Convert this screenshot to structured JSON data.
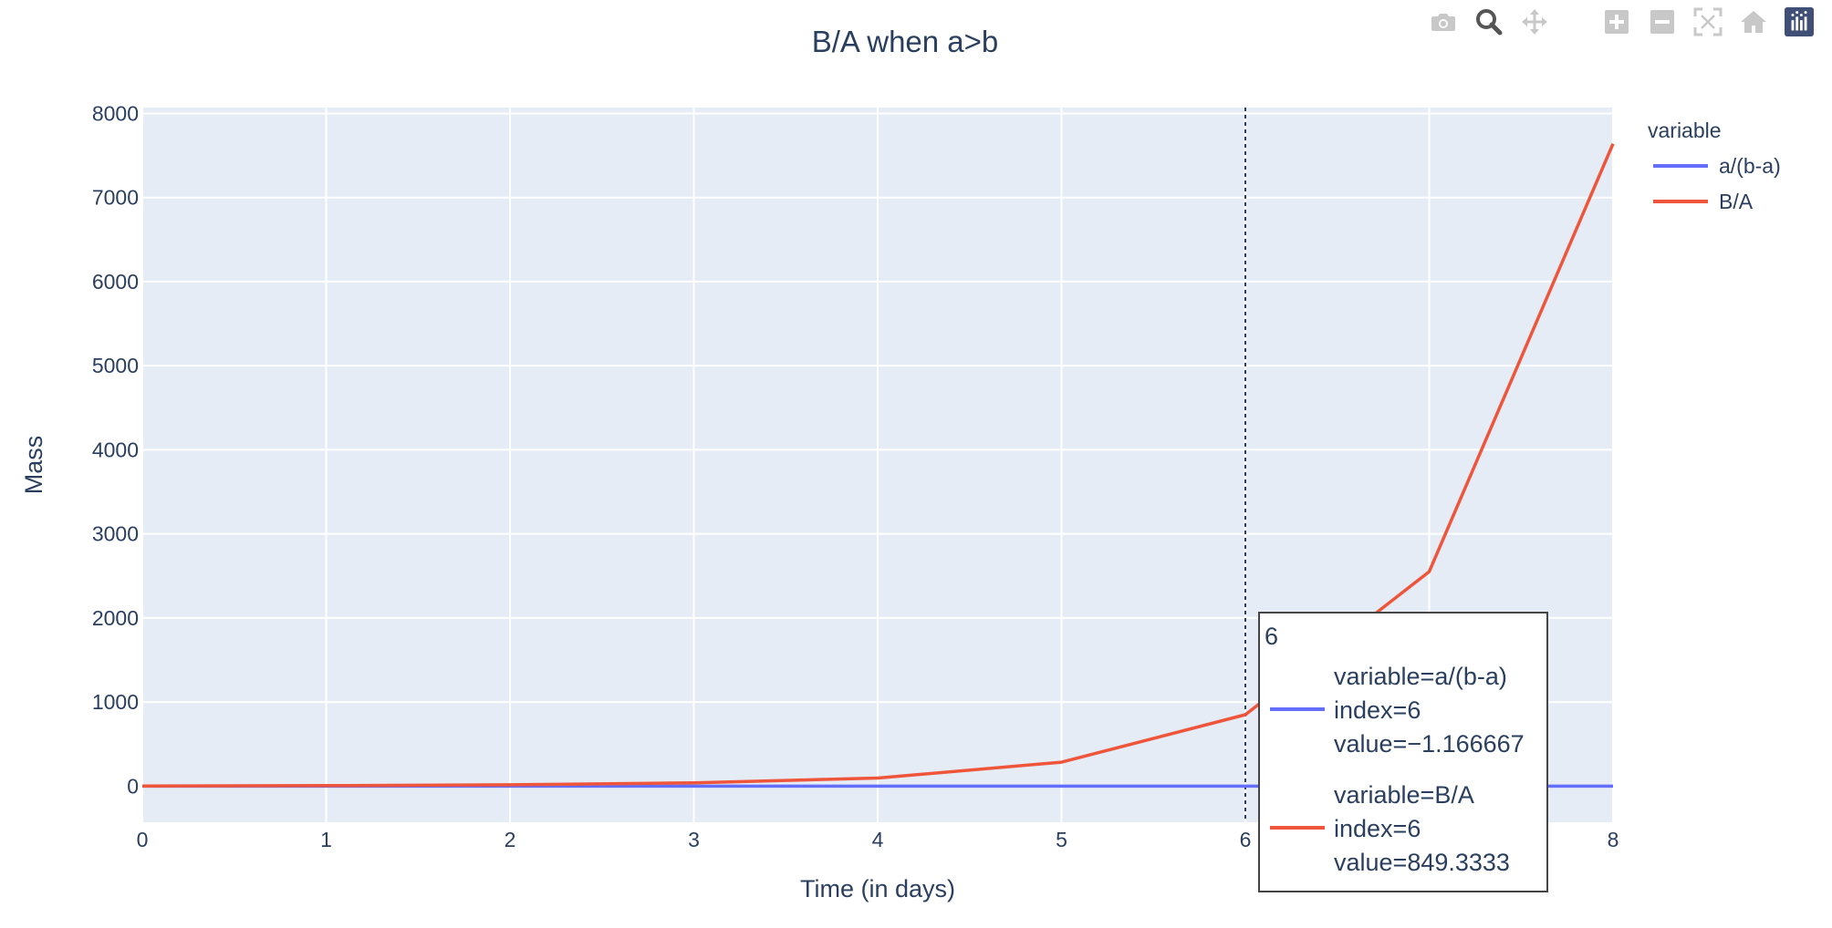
{
  "modebar": {
    "buttons": [
      "camera-icon",
      "zoom-icon",
      "pan-icon",
      "zoom-in-icon",
      "zoom-out-icon",
      "autoscale-icon",
      "reset-axes-icon",
      "plotly-logo-icon"
    ]
  },
  "chart_data": {
    "type": "line",
    "title": "B/A when a>b",
    "xlabel": "Time (in days)",
    "ylabel": "Mass",
    "xlim": [
      0,
      8
    ],
    "ylim": [
      -430,
      8070
    ],
    "x_ticks": [
      0,
      1,
      2,
      3,
      4,
      5,
      6,
      7,
      8
    ],
    "x_tick_labels": [
      "0",
      "1",
      "2",
      "3",
      "4",
      "5",
      "6",
      "",
      "8"
    ],
    "y_ticks": [
      0,
      1000,
      2000,
      3000,
      4000,
      5000,
      6000,
      7000,
      8000
    ],
    "y_tick_labels": [
      "0",
      "1000",
      "2000",
      "3000",
      "4000",
      "5000",
      "6000",
      "7000",
      "8000"
    ],
    "grid": true,
    "background": "#e5ecf6",
    "legend": {
      "title": "variable",
      "placement": "top-right, outside plot"
    },
    "x": [
      0,
      1,
      2,
      3,
      4,
      5,
      6,
      7,
      8
    ],
    "series": [
      {
        "name": "a/(b-a)",
        "color": "#636efa",
        "values": [
          -1.166667,
          -1.166667,
          -1.166667,
          -1.166667,
          -1.166667,
          -1.166667,
          -1.166667,
          -1.166667,
          -1.166667
        ]
      },
      {
        "name": "B/A",
        "color": "#ef553b",
        "values": [
          0,
          6,
          16,
          38,
          96,
          284,
          849.3333,
          2550,
          7640
        ]
      }
    ],
    "hover": {
      "x_label": "6",
      "spike_x": 6,
      "entries": [
        {
          "color": "#636efa",
          "lines": [
            "variable=a/(b-a)",
            "index=6",
            "value=−1.166667"
          ]
        },
        {
          "color": "#ef553b",
          "lines": [
            "variable=B/A",
            "index=6",
            "value=849.3333"
          ]
        }
      ]
    }
  }
}
